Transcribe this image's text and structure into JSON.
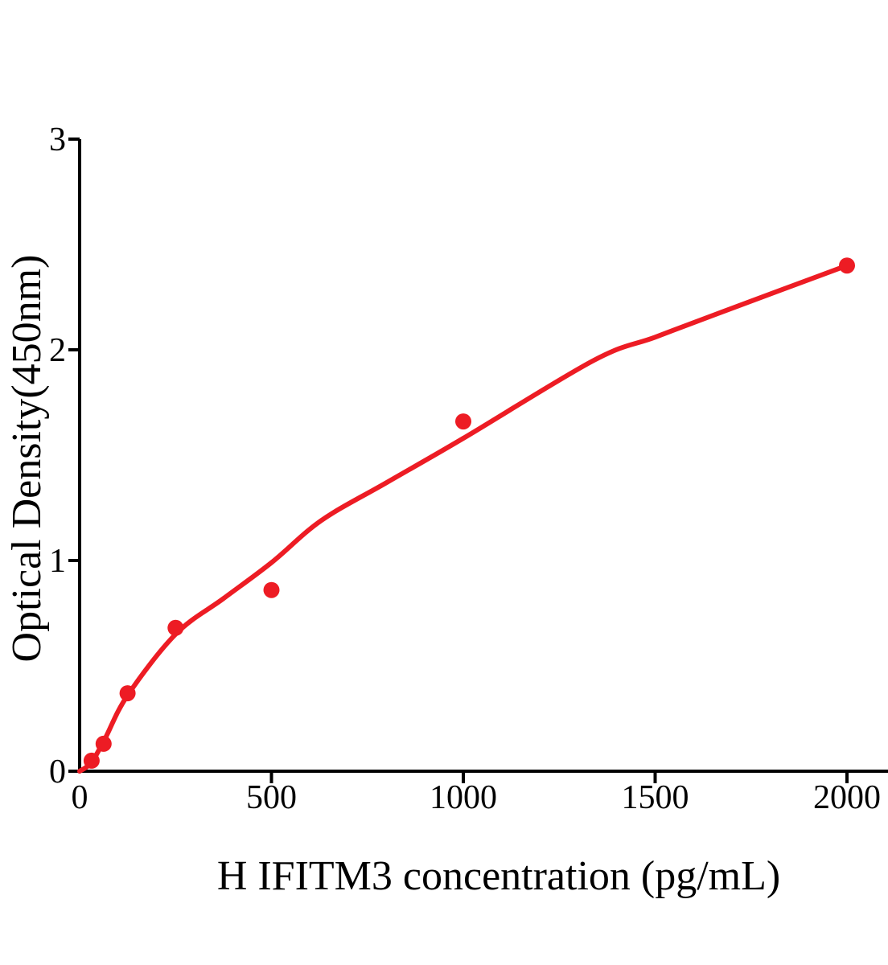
{
  "figure": {
    "background": "#ffffff",
    "axis_color": "#000000",
    "accent_color": "#ed1c24"
  },
  "chart_data": {
    "type": "scatter",
    "title": "",
    "xlabel": "H IFITM3 concentration (pg/mL)",
    "ylabel": "Optical Density(450nm)",
    "xlim": [
      0,
      2100
    ],
    "ylim": [
      0,
      3
    ],
    "x_ticks": [
      0,
      500,
      1000,
      1500,
      2000
    ],
    "y_ticks": [
      0,
      1,
      2,
      3
    ],
    "grid": false,
    "legend_position": "none",
    "series": [
      {
        "name": "standard-points",
        "type": "scatter",
        "color": "#ed1c24",
        "marker": "circle",
        "x": [
          31.25,
          62.5,
          125,
          250,
          500,
          1000,
          2000
        ],
        "y": [
          0.05,
          0.13,
          0.37,
          0.68,
          0.86,
          1.66,
          2.4
        ]
      },
      {
        "name": "fit-curve",
        "type": "line",
        "color": "#ed1c24",
        "x": [
          0,
          30,
          65,
          125,
          250,
          375,
          500,
          630,
          800,
          1000,
          1340,
          1500,
          1675,
          2000
        ],
        "y": [
          0.0,
          0.04,
          0.15,
          0.36,
          0.65,
          0.82,
          0.99,
          1.19,
          1.37,
          1.58,
          1.95,
          2.06,
          2.18,
          2.4
        ]
      }
    ]
  }
}
